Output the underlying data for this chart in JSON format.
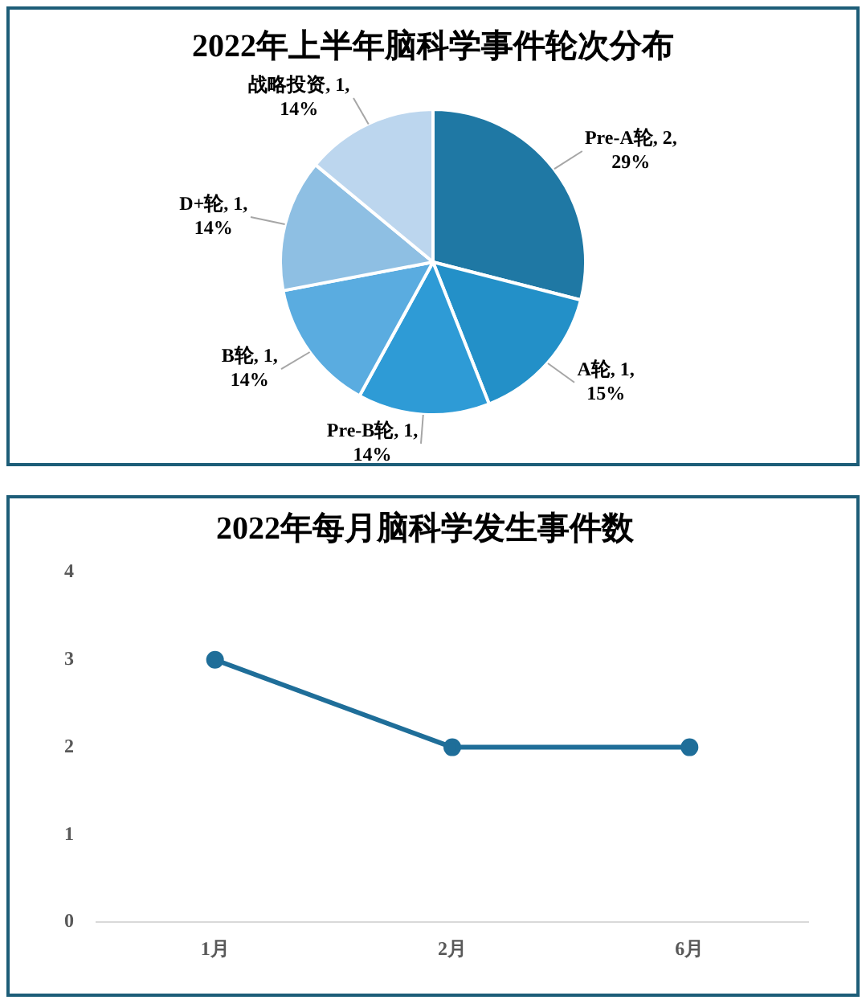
{
  "chart_data": [
    {
      "type": "pie",
      "title": "2022年上半年脑科学事件轮次分布",
      "categories": [
        "Pre-A轮",
        "A轮",
        "Pre-B轮",
        "B轮",
        "D+轮",
        "战略投资"
      ],
      "values": [
        29,
        15,
        14,
        14,
        14,
        14
      ],
      "value_labels": [
        ", 2, 29%",
        ", 1, 15%",
        ", 1, 14%",
        ", 1, 14%",
        ", 1, 14%",
        ", 1, 14%"
      ],
      "colors": [
        "#1f78a4",
        "#2390c8",
        "#2e9bd6",
        "#5aace0",
        "#8ebfe3",
        "#bcd6ee"
      ],
      "legend": false
    },
    {
      "type": "line",
      "title": "2022年每月脑科学发生事件数",
      "categories": [
        "1月",
        "2月",
        "6月"
      ],
      "series": [
        {
          "color": "#1f6e99",
          "values": [
            3,
            2,
            2
          ]
        }
      ],
      "ylim": [
        0,
        4
      ],
      "yticks": [
        0,
        1,
        2,
        3,
        4
      ],
      "grid": false,
      "legend": false,
      "marker": "circle"
    }
  ]
}
